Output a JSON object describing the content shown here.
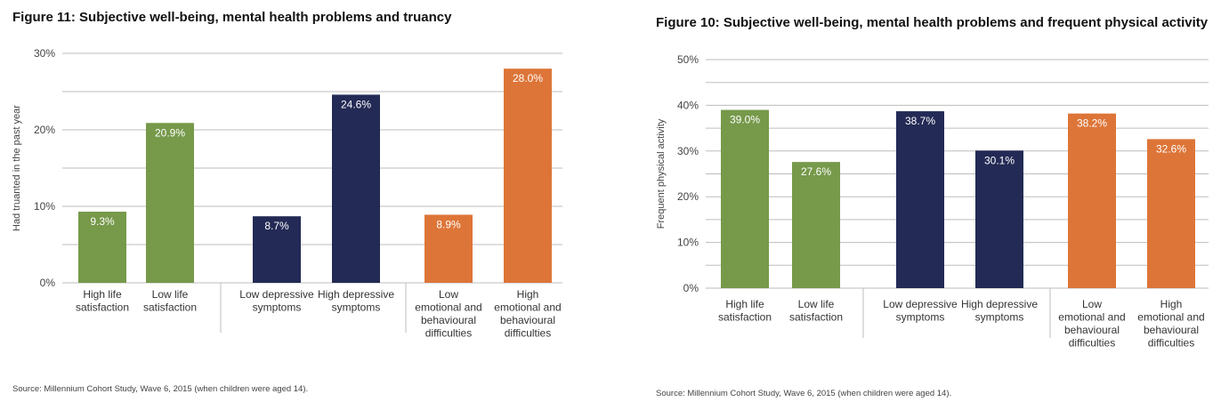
{
  "colors": {
    "satisfaction": "#76994a",
    "depressive": "#232a55",
    "behavioural": "#dd7538",
    "grid": "#bdbdbd",
    "axis_text": "#444444",
    "bar_label": "#ffffff"
  },
  "chart_data": [
    {
      "type": "bar",
      "title": "Figure 11: Subjective well-being, mental health problems and truancy",
      "ylabel": "Had truanted in the past year",
      "xlabel": "",
      "ylim": [
        0,
        30
      ],
      "yticks": [
        "0%",
        "10%",
        "20%",
        "30%"
      ],
      "ytick_values": [
        0,
        10,
        20,
        30
      ],
      "grid": true,
      "categories": [
        "High life satisfaction",
        "Low life satisfaction",
        "Low depressive symptoms",
        "High depressive symptoms",
        "Low emotional and behavioural difficulties",
        "High emotional and behavioural difficulties"
      ],
      "category_lines": [
        [
          "High life",
          "satisfaction"
        ],
        [
          "Low life",
          "satisfaction"
        ],
        [
          "Low depressive",
          "symptoms"
        ],
        [
          "High depressive",
          "symptoms"
        ],
        [
          "Low",
          "emotional and",
          "behavioural",
          "difficulties"
        ],
        [
          "High",
          "emotional and",
          "behavioural",
          "difficulties"
        ]
      ],
      "values": [
        9.3,
        20.9,
        8.7,
        24.6,
        8.9,
        28.0
      ],
      "labels": [
        "9.3%",
        "20.9%",
        "8.7%",
        "24.6%",
        "8.9%",
        "28.0%"
      ],
      "groups": [
        "satisfaction",
        "satisfaction",
        "depressive",
        "depressive",
        "behavioural",
        "behavioural"
      ],
      "source": "Source: Millennium Cohort Study, Wave 6, 2015 (when children were aged 14)."
    },
    {
      "type": "bar",
      "title": "Figure 10: Subjective well-being, mental health problems and frequent physical activity",
      "ylabel": "Frequent physical activity",
      "xlabel": "",
      "ylim": [
        0,
        50
      ],
      "yticks": [
        "0%",
        "10%",
        "20%",
        "30%",
        "40%",
        "50%"
      ],
      "ytick_values": [
        0,
        10,
        20,
        30,
        40,
        50
      ],
      "grid": true,
      "categories": [
        "High life satisfaction",
        "Low life satisfaction",
        "Low depressive symptoms",
        "High depressive symptoms",
        "Low emotional and behavioural difficulties",
        "High emotional and behavioural difficulties"
      ],
      "category_lines": [
        [
          "High life",
          "satisfaction"
        ],
        [
          "Low life",
          "satisfaction"
        ],
        [
          "Low depressive",
          "symptoms"
        ],
        [
          "High depressive",
          "symptoms"
        ],
        [
          "Low",
          "emotional and",
          "behavioural",
          "difficulties"
        ],
        [
          "High",
          "emotional and",
          "behavioural",
          "difficulties"
        ]
      ],
      "values": [
        39.0,
        27.6,
        38.7,
        30.1,
        38.2,
        32.6
      ],
      "labels": [
        "39.0%",
        "27.6%",
        "38.7%",
        "30.1%",
        "38.2%",
        "32.6%"
      ],
      "groups": [
        "satisfaction",
        "satisfaction",
        "depressive",
        "depressive",
        "behavioural",
        "behavioural"
      ],
      "source": "Source: Millennium Cohort Study, Wave 6, 2015 (when children were aged 14)."
    }
  ]
}
